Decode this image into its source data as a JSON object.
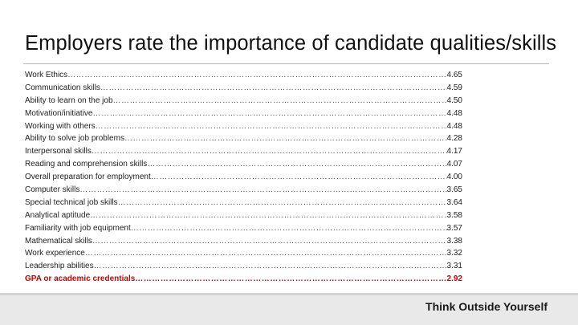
{
  "slide": {
    "title": "Employers rate the importance of candidate qualities/skills"
  },
  "skills": [
    {
      "name": "Work Ethics",
      "score": "4.65"
    },
    {
      "name": "Communication skills",
      "score": "4.59"
    },
    {
      "name": "Ability to learn on the job",
      "score": "4.50"
    },
    {
      "name": "Motivation/initiative",
      "score": "4.48"
    },
    {
      "name": "Working with others",
      "score": "4.48"
    },
    {
      "name": "Ability to solve job problems",
      "score": "4.28"
    },
    {
      "name": "Interpersonal skills",
      "score": "4.17"
    },
    {
      "name": "Reading and comprehension skills",
      "score": "4.07"
    },
    {
      "name": "Overall preparation for employment",
      "score": "4.00"
    },
    {
      "name": "Computer skills",
      "score": "3.65"
    },
    {
      "name": "Special technical job skills",
      "score": "3.64"
    },
    {
      "name": "Analytical aptitude",
      "score": "3.58"
    },
    {
      "name": "Familiarity with job equipment",
      "score": "3.57"
    },
    {
      "name": "Mathematical skills",
      "score": "3.38"
    },
    {
      "name": "Work experience",
      "score": "3.32"
    },
    {
      "name": "Leadership abilities",
      "score": "3.31"
    },
    {
      "name": "GPA or academic credentials",
      "score": "2.92",
      "highlight": true
    }
  ],
  "colors": {
    "highlight": "#cc0000"
  },
  "footer": {
    "tagline": "Think Outside Yourself"
  }
}
